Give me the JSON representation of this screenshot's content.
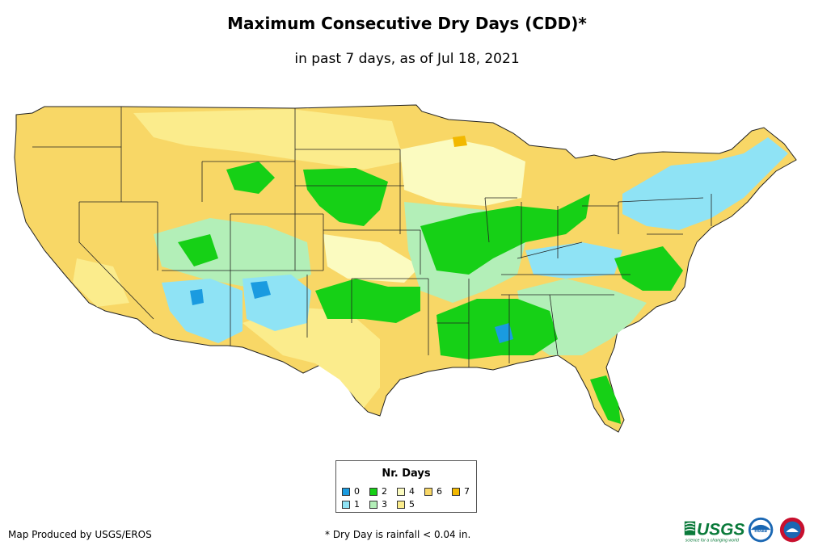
{
  "title": "Maximum Consecutive Dry Days (CDD)*",
  "subtitle": "in past 7 days, as of Jul 18, 2021",
  "legend": {
    "title": "Nr. Days",
    "items": [
      {
        "label": "0",
        "color": "#1a9be0"
      },
      {
        "label": "1",
        "color": "#8fe3f5"
      },
      {
        "label": "2",
        "color": "#16d016"
      },
      {
        "label": "3",
        "color": "#b3efb8"
      },
      {
        "label": "4",
        "color": "#fbfbc0"
      },
      {
        "label": "5",
        "color": "#fbec8c"
      },
      {
        "label": "6",
        "color": "#f8d766"
      },
      {
        "label": "7",
        "color": "#f2b800"
      }
    ]
  },
  "credit": "Map Produced by USGS/EROS",
  "footnote": "* Dry Day is rainfall < 0.04 in.",
  "logos": {
    "usgs_wordmark": "USGS",
    "usgs_tagline": "science for a changing world",
    "noaa_text": "noaa"
  }
}
